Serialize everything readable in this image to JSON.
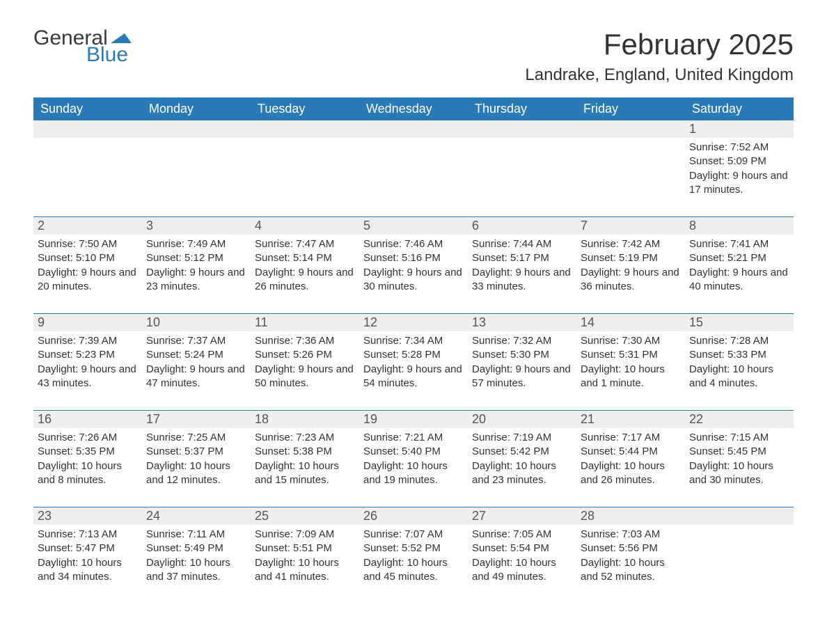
{
  "logo": {
    "text1": "General",
    "text2": "Blue",
    "flag_color": "#2a7ab8"
  },
  "title": "February 2025",
  "location": "Landrake, England, United Kingdom",
  "colors": {
    "header_bg": "#2a7ab8",
    "header_text": "#ffffff",
    "daynum_bg": "#eeeeee",
    "daynum_text": "#555555",
    "body_text": "#333333",
    "rule": "#2a7ab8",
    "page_bg": "#ffffff"
  },
  "typography": {
    "title_fontsize": 42,
    "location_fontsize": 24,
    "dayhead_fontsize": 18,
    "daynum_fontsize": 18,
    "cell_fontsize": 15,
    "font_family": "Arial"
  },
  "day_headers": [
    "Sunday",
    "Monday",
    "Tuesday",
    "Wednesday",
    "Thursday",
    "Friday",
    "Saturday"
  ],
  "weeks": [
    [
      null,
      null,
      null,
      null,
      null,
      null,
      {
        "n": "1",
        "sunrise": "7:52 AM",
        "sunset": "5:09 PM",
        "daylight": "9 hours and 17 minutes."
      }
    ],
    [
      {
        "n": "2",
        "sunrise": "7:50 AM",
        "sunset": "5:10 PM",
        "daylight": "9 hours and 20 minutes."
      },
      {
        "n": "3",
        "sunrise": "7:49 AM",
        "sunset": "5:12 PM",
        "daylight": "9 hours and 23 minutes."
      },
      {
        "n": "4",
        "sunrise": "7:47 AM",
        "sunset": "5:14 PM",
        "daylight": "9 hours and 26 minutes."
      },
      {
        "n": "5",
        "sunrise": "7:46 AM",
        "sunset": "5:16 PM",
        "daylight": "9 hours and 30 minutes."
      },
      {
        "n": "6",
        "sunrise": "7:44 AM",
        "sunset": "5:17 PM",
        "daylight": "9 hours and 33 minutes."
      },
      {
        "n": "7",
        "sunrise": "7:42 AM",
        "sunset": "5:19 PM",
        "daylight": "9 hours and 36 minutes."
      },
      {
        "n": "8",
        "sunrise": "7:41 AM",
        "sunset": "5:21 PM",
        "daylight": "9 hours and 40 minutes."
      }
    ],
    [
      {
        "n": "9",
        "sunrise": "7:39 AM",
        "sunset": "5:23 PM",
        "daylight": "9 hours and 43 minutes."
      },
      {
        "n": "10",
        "sunrise": "7:37 AM",
        "sunset": "5:24 PM",
        "daylight": "9 hours and 47 minutes."
      },
      {
        "n": "11",
        "sunrise": "7:36 AM",
        "sunset": "5:26 PM",
        "daylight": "9 hours and 50 minutes."
      },
      {
        "n": "12",
        "sunrise": "7:34 AM",
        "sunset": "5:28 PM",
        "daylight": "9 hours and 54 minutes."
      },
      {
        "n": "13",
        "sunrise": "7:32 AM",
        "sunset": "5:30 PM",
        "daylight": "9 hours and 57 minutes."
      },
      {
        "n": "14",
        "sunrise": "7:30 AM",
        "sunset": "5:31 PM",
        "daylight": "10 hours and 1 minute."
      },
      {
        "n": "15",
        "sunrise": "7:28 AM",
        "sunset": "5:33 PM",
        "daylight": "10 hours and 4 minutes."
      }
    ],
    [
      {
        "n": "16",
        "sunrise": "7:26 AM",
        "sunset": "5:35 PM",
        "daylight": "10 hours and 8 minutes."
      },
      {
        "n": "17",
        "sunrise": "7:25 AM",
        "sunset": "5:37 PM",
        "daylight": "10 hours and 12 minutes."
      },
      {
        "n": "18",
        "sunrise": "7:23 AM",
        "sunset": "5:38 PM",
        "daylight": "10 hours and 15 minutes."
      },
      {
        "n": "19",
        "sunrise": "7:21 AM",
        "sunset": "5:40 PM",
        "daylight": "10 hours and 19 minutes."
      },
      {
        "n": "20",
        "sunrise": "7:19 AM",
        "sunset": "5:42 PM",
        "daylight": "10 hours and 23 minutes."
      },
      {
        "n": "21",
        "sunrise": "7:17 AM",
        "sunset": "5:44 PM",
        "daylight": "10 hours and 26 minutes."
      },
      {
        "n": "22",
        "sunrise": "7:15 AM",
        "sunset": "5:45 PM",
        "daylight": "10 hours and 30 minutes."
      }
    ],
    [
      {
        "n": "23",
        "sunrise": "7:13 AM",
        "sunset": "5:47 PM",
        "daylight": "10 hours and 34 minutes."
      },
      {
        "n": "24",
        "sunrise": "7:11 AM",
        "sunset": "5:49 PM",
        "daylight": "10 hours and 37 minutes."
      },
      {
        "n": "25",
        "sunrise": "7:09 AM",
        "sunset": "5:51 PM",
        "daylight": "10 hours and 41 minutes."
      },
      {
        "n": "26",
        "sunrise": "7:07 AM",
        "sunset": "5:52 PM",
        "daylight": "10 hours and 45 minutes."
      },
      {
        "n": "27",
        "sunrise": "7:05 AM",
        "sunset": "5:54 PM",
        "daylight": "10 hours and 49 minutes."
      },
      {
        "n": "28",
        "sunrise": "7:03 AM",
        "sunset": "5:56 PM",
        "daylight": "10 hours and 52 minutes."
      },
      null
    ]
  ],
  "labels": {
    "sunrise": "Sunrise:",
    "sunset": "Sunset:",
    "daylight": "Daylight:"
  }
}
